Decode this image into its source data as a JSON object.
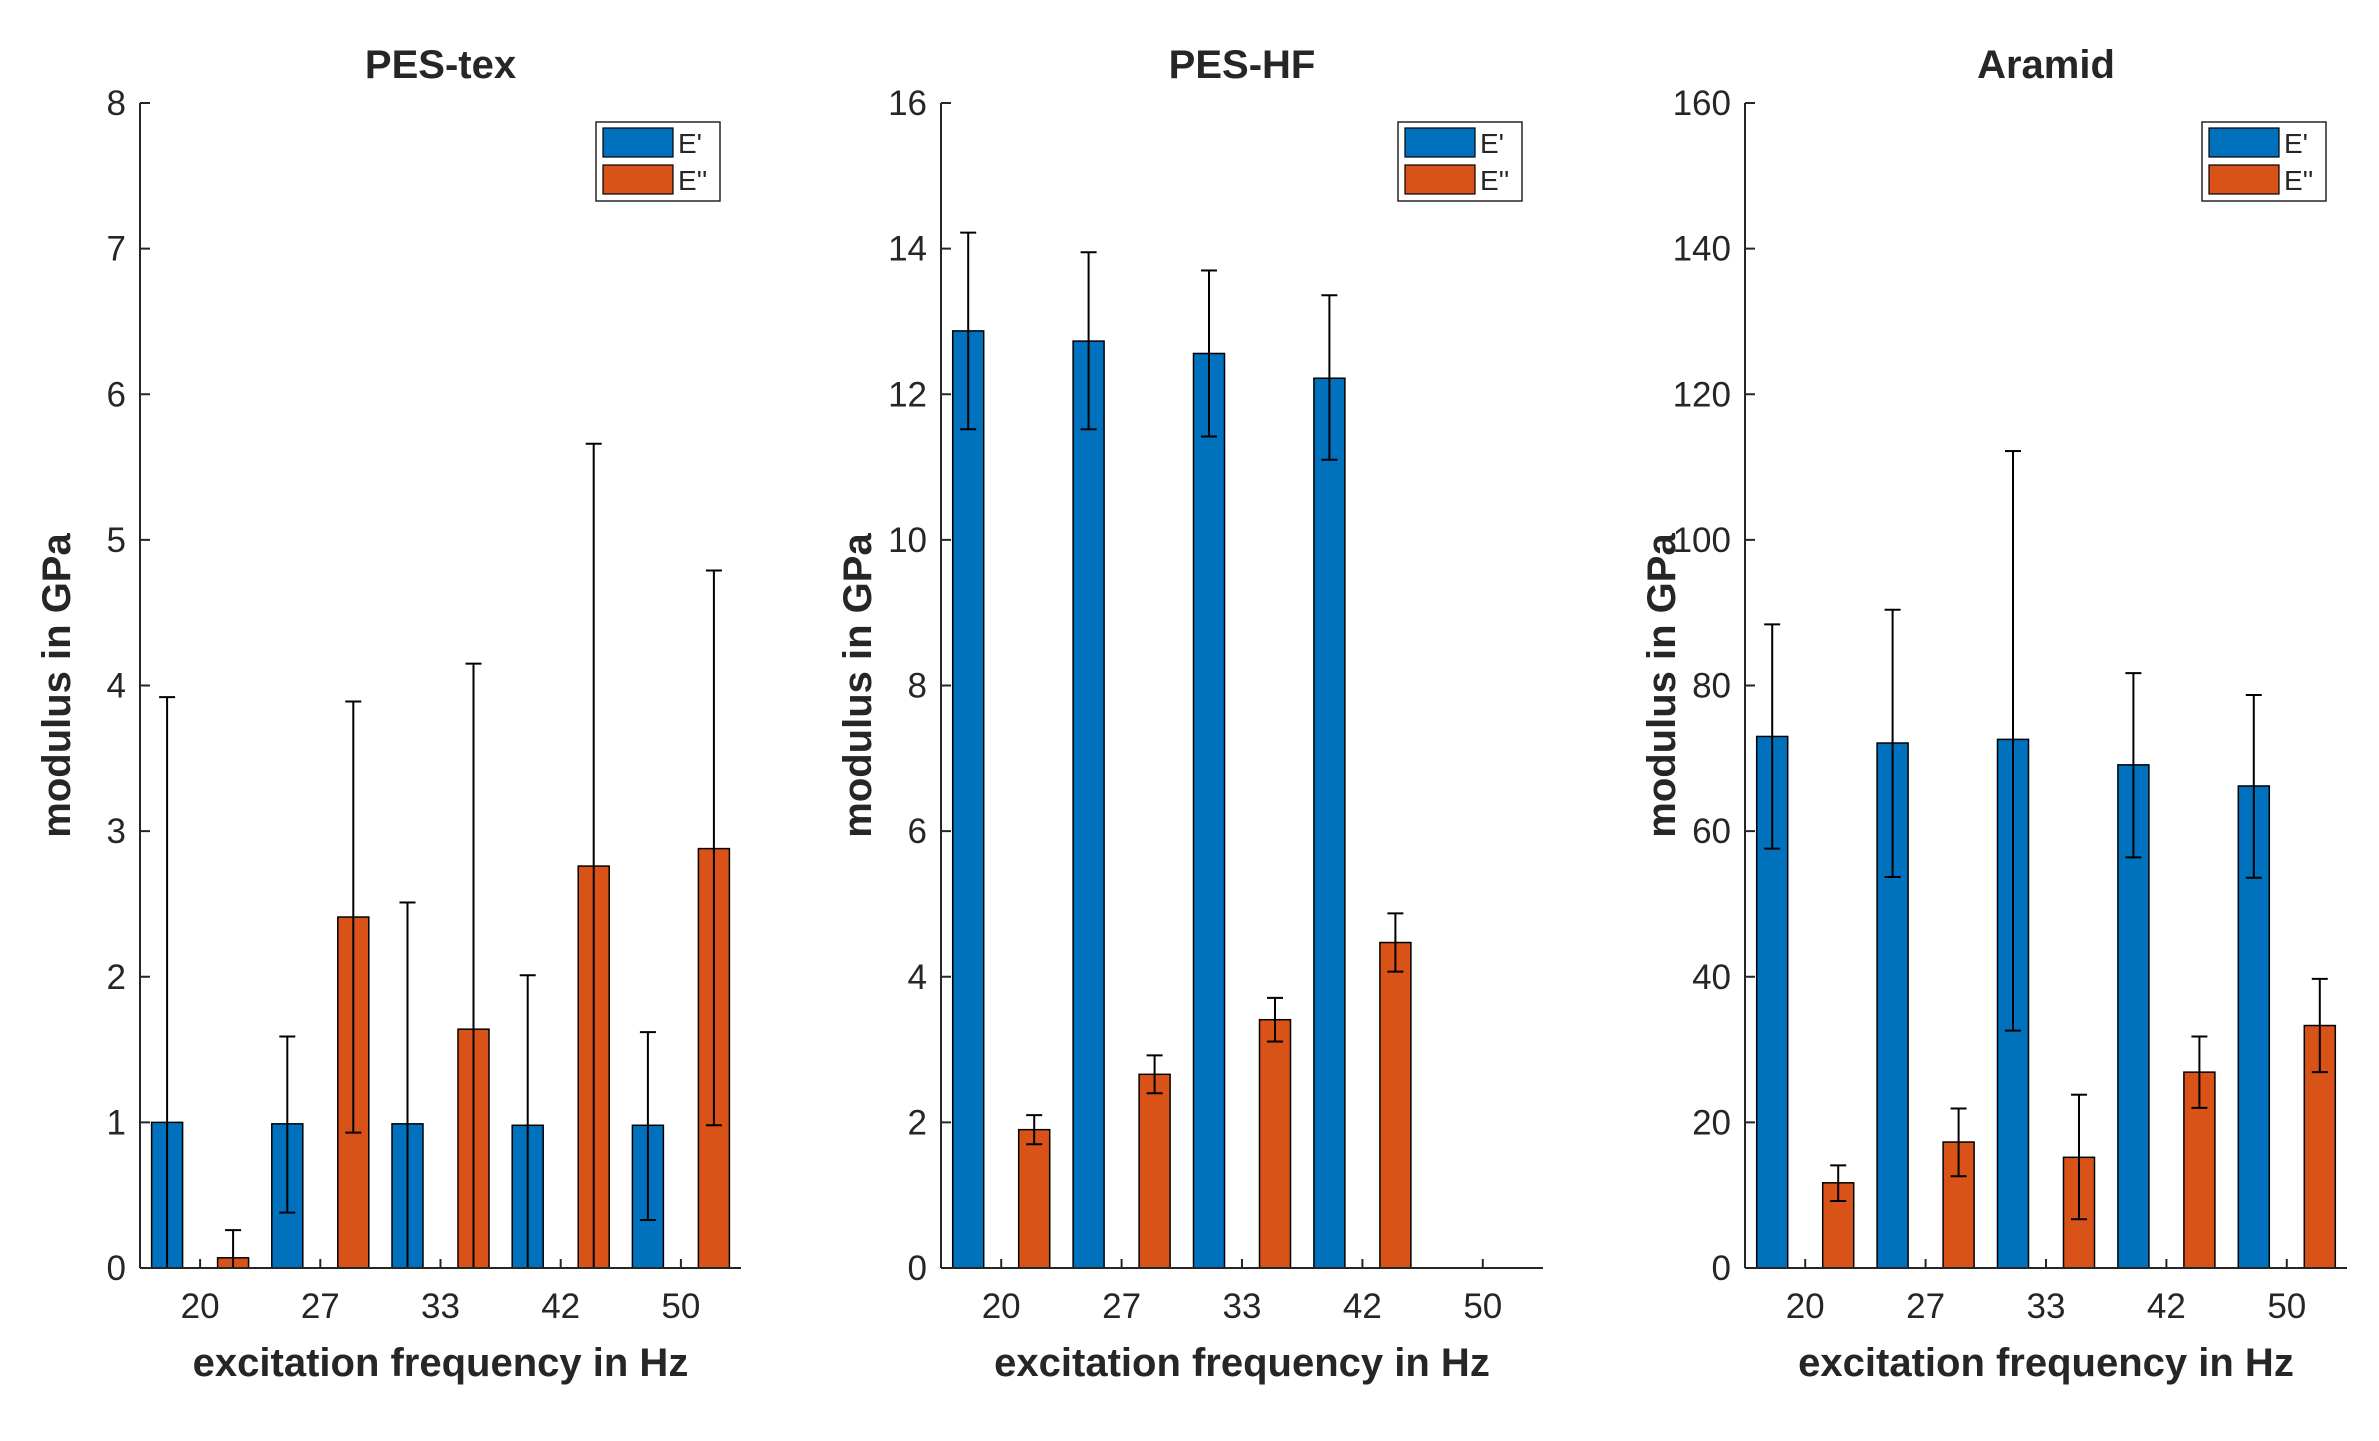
{
  "chart_data": [
    {
      "type": "bar",
      "title": "PES-tex",
      "xlabel": "excitation frequency in Hz",
      "ylabel": "modulus in GPa",
      "categories": [
        "20",
        "27",
        "33",
        "42",
        "50"
      ],
      "ylim": [
        0,
        8
      ],
      "yticks": [
        "0",
        "1",
        "2",
        "3",
        "4",
        "5",
        "6",
        "7",
        "8"
      ],
      "legend_position": "top-right",
      "series": [
        {
          "name": "E'",
          "color": "#0072BD",
          "values": [
            1.0,
            0.99,
            0.99,
            0.98,
            0.98
          ],
          "err_low": [
            0.0,
            0.38,
            0.0,
            0.0,
            0.33
          ],
          "err_high": [
            3.92,
            1.59,
            2.51,
            2.01,
            1.62
          ]
        },
        {
          "name": "E''",
          "color": "#D95319",
          "values": [
            0.07,
            2.41,
            1.64,
            2.76,
            2.88
          ],
          "err_low": [
            0.0,
            0.93,
            0.0,
            0.0,
            0.98
          ],
          "err_high": [
            0.26,
            3.89,
            4.15,
            5.66,
            4.79
          ]
        }
      ]
    },
    {
      "type": "bar",
      "title": "PES-HF",
      "xlabel": "excitation frequency in Hz",
      "ylabel": "modulus in GPa",
      "categories": [
        "20",
        "27",
        "33",
        "42",
        "50"
      ],
      "ylim": [
        0,
        16
      ],
      "yticks": [
        "0",
        "2",
        "4",
        "6",
        "8",
        "10",
        "12",
        "14",
        "16"
      ],
      "legend_position": "top-right",
      "series": [
        {
          "name": "E'",
          "color": "#0072BD",
          "values": [
            12.87,
            12.73,
            12.56,
            12.22,
            null
          ],
          "err_low": [
            11.52,
            11.52,
            11.42,
            11.1,
            null
          ],
          "err_high": [
            14.22,
            13.95,
            13.7,
            13.36,
            null
          ]
        },
        {
          "name": "E''",
          "color": "#D95319",
          "values": [
            1.9,
            2.66,
            3.41,
            4.47,
            null
          ],
          "err_low": [
            1.7,
            2.4,
            3.11,
            4.07,
            null
          ],
          "err_high": [
            2.1,
            2.92,
            3.71,
            4.87,
            null
          ]
        }
      ]
    },
    {
      "type": "bar",
      "title": "Aramid",
      "xlabel": "excitation frequency in Hz",
      "ylabel": "modulus in GPa",
      "categories": [
        "20",
        "27",
        "33",
        "42",
        "50"
      ],
      "ylim": [
        0,
        160
      ],
      "yticks": [
        "0",
        "20",
        "40",
        "60",
        "80",
        "100",
        "120",
        "140",
        "160"
      ],
      "legend_position": "top-right",
      "series": [
        {
          "name": "E'",
          "color": "#0072BD",
          "values": [
            73.0,
            72.1,
            72.6,
            69.1,
            66.2
          ],
          "err_low": [
            57.6,
            53.7,
            32.6,
            56.4,
            53.6
          ],
          "err_high": [
            88.4,
            90.4,
            112.2,
            81.7,
            78.7
          ]
        },
        {
          "name": "E''",
          "color": "#D95319",
          "values": [
            11.7,
            17.3,
            15.2,
            26.9,
            33.3
          ],
          "err_low": [
            9.2,
            12.6,
            6.7,
            22.0,
            26.9
          ],
          "err_high": [
            14.1,
            21.9,
            23.8,
            31.8,
            39.7
          ]
        }
      ]
    }
  ]
}
